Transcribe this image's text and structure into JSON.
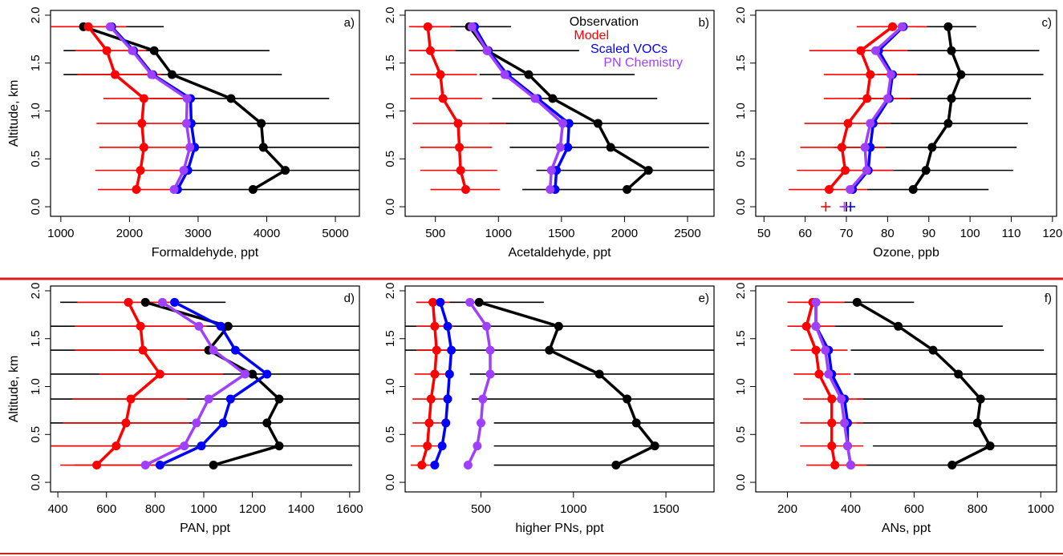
{
  "colors": {
    "observation": "#000000",
    "model": "#ff0000",
    "scaled_vocs": "#0000ff",
    "pn_chemistry": "#a040ff",
    "separator": "#d02020"
  },
  "legend": {
    "placement": "top-right of panel b",
    "entries": [
      "Observation",
      "Model",
      "Scaled VOCs",
      "PN Chemistry"
    ]
  },
  "chart_data": [
    {
      "type": "line",
      "panel_label": "a)",
      "xlabel": "Formaldehyde, ppt",
      "ylabel": "Altitude, km",
      "xlim": [
        850,
        5350
      ],
      "ylim": [
        -0.1,
        2.05
      ],
      "xticks": [
        1000,
        2000,
        3000,
        4000,
        5000
      ],
      "yticks": [
        0.0,
        0.5,
        1.0,
        1.5,
        2.0
      ],
      "altitudes": [
        0.18,
        0.38,
        0.62,
        0.87,
        1.13,
        1.38,
        1.63,
        1.88
      ],
      "series": [
        {
          "name": "Observation",
          "values": [
            3800,
            4270,
            3950,
            3920,
            3480,
            2620,
            2360,
            1330
          ],
          "err_low": [
            2600,
            2880,
            2880,
            2880,
            2300,
            1040,
            1040,
            1330
          ],
          "err_high": [
            5350,
            5350,
            5350,
            5350,
            4910,
            4220,
            4040,
            2500
          ]
        },
        {
          "name": "Model",
          "values": [
            2100,
            2160,
            2210,
            2180,
            2210,
            1790,
            1670,
            1400
          ],
          "err_low": [
            1540,
            1500,
            1560,
            1520,
            1620,
            1240,
            1210,
            850
          ],
          "err_high": [
            2680,
            2830,
            2830,
            2830,
            2830,
            2460,
            2240,
            1950
          ]
        },
        {
          "name": "Scaled VOCs",
          "values": [
            2700,
            2850,
            2950,
            2900,
            2890,
            2340,
            2060,
            1740
          ]
        },
        {
          "name": "PN Chemistry",
          "values": [
            2650,
            2790,
            2880,
            2830,
            2840,
            2320,
            2040,
            1720
          ]
        }
      ]
    },
    {
      "type": "line",
      "panel_label": "b)",
      "xlabel": "Acetaldehyde, ppt",
      "ylabel": "",
      "xlim": [
        260,
        2710
      ],
      "ylim": [
        -0.1,
        2.05
      ],
      "xticks": [
        500,
        1000,
        1500,
        2000,
        2500
      ],
      "yticks": [
        0.0,
        0.5,
        1.0,
        1.5,
        2.0
      ],
      "altitudes": [
        0.18,
        0.38,
        0.62,
        0.87,
        1.13,
        1.38,
        1.63,
        1.88
      ],
      "series": [
        {
          "name": "Observation",
          "values": [
            2020,
            2190,
            1890,
            1790,
            1430,
            1240,
            910,
            770
          ],
          "err_low": [
            1190,
            1300,
            1090,
            930,
            950,
            850,
            290,
            350
          ],
          "err_high": [
            2710,
            2710,
            2670,
            2670,
            2260,
            2080,
            1640,
            1100
          ]
        },
        {
          "name": "Model",
          "values": [
            740,
            700,
            690,
            680,
            560,
            540,
            460,
            440
          ],
          "err_low": [
            460,
            380,
            380,
            320,
            300,
            300,
            290,
            290
          ],
          "err_high": [
            1010,
            990,
            950,
            1060,
            870,
            830,
            660,
            620
          ]
        },
        {
          "name": "Scaled VOCs",
          "values": [
            1450,
            1460,
            1550,
            1560,
            1310,
            1070,
            920,
            810
          ]
        },
        {
          "name": "PN Chemistry",
          "values": [
            1410,
            1420,
            1490,
            1510,
            1290,
            1050,
            910,
            790
          ]
        }
      ]
    },
    {
      "type": "line",
      "panel_label": "c)",
      "xlabel": "Ozone, ppb",
      "ylabel": "",
      "xlim": [
        48,
        121
      ],
      "ylim": [
        -0.1,
        2.05
      ],
      "xticks": [
        50,
        60,
        70,
        80,
        90,
        100,
        110,
        120
      ],
      "yticks": [
        0.0,
        0.5,
        1.0,
        1.5,
        2.0
      ],
      "altitudes": [
        0.18,
        0.38,
        0.62,
        0.87,
        1.13,
        1.38,
        1.63,
        1.88
      ],
      "series": [
        {
          "name": "Observation",
          "values": [
            86.2,
            89.3,
            90.8,
            94.7,
            95.5,
            97.8,
            95.5,
            94.7
          ],
          "err_low": [
            75.0,
            68.0,
            67.0,
            75.0,
            73.0,
            77.5,
            74.0,
            87.0
          ],
          "err_high": [
            104.5,
            110.5,
            111.3,
            114.0,
            114.8,
            117.8,
            116.8,
            101.5
          ]
        },
        {
          "name": "Model",
          "values": [
            65.8,
            69.7,
            68.9,
            70.4,
            75.0,
            75.8,
            73.5,
            81.2
          ],
          "err_low": [
            56.0,
            58.0,
            58.8,
            59.8,
            64.5,
            64.5,
            61.0,
            72.5
          ],
          "err_high": [
            75.0,
            81.3,
            79.5,
            80.8,
            85.5,
            87.2,
            84.8,
            89.5
          ]
        },
        {
          "name": "Scaled VOCs",
          "values": [
            71.5,
            75.3,
            75.8,
            76.5,
            80.4,
            81.2,
            77.8,
            83.8
          ]
        },
        {
          "name": "PN Chemistry",
          "values": [
            70.9,
            74.9,
            74.5,
            75.8,
            80.0,
            80.8,
            77.1,
            83.5
          ]
        }
      ],
      "surface_markers": [
        {
          "name": "Model",
          "value": 65
        },
        {
          "name": "Observation",
          "value": 70
        },
        {
          "name": "Scaled VOCs",
          "value": 71
        },
        {
          "name": "PN Chemistry",
          "value": 69.5
        }
      ]
    },
    {
      "type": "line",
      "panel_label": "d)",
      "xlabel": "PAN, ppt",
      "ylabel": "Altitude, km",
      "xlim": [
        370,
        1640
      ],
      "ylim": [
        -0.1,
        2.05
      ],
      "xticks": [
        400,
        600,
        800,
        1000,
        1200,
        1400,
        1600
      ],
      "yticks": [
        0.0,
        0.5,
        1.0,
        1.5,
        2.0
      ],
      "altitudes": [
        0.18,
        0.38,
        0.62,
        0.87,
        1.13,
        1.38,
        1.63,
        1.88
      ],
      "series": [
        {
          "name": "Observation",
          "values": [
            1040,
            1310,
            1260,
            1310,
            1200,
            1020,
            1100,
            760
          ],
          "err_low": [
            470,
            370,
            370,
            370,
            370,
            370,
            370,
            410
          ],
          "err_high": [
            1610,
            1640,
            1640,
            1640,
            1640,
            1640,
            1640,
            1090
          ]
        },
        {
          "name": "Model",
          "values": [
            560,
            640,
            680,
            700,
            820,
            750,
            740,
            690
          ],
          "err_low": [
            410,
            370,
            420,
            460,
            570,
            470,
            470,
            480
          ],
          "err_high": [
            800,
            930,
            940,
            930,
            1080,
            1040,
            1010,
            890
          ]
        },
        {
          "name": "Scaled VOCs",
          "values": [
            820,
            990,
            1080,
            1110,
            1260,
            1130,
            1070,
            880
          ]
        },
        {
          "name": "PN Chemistry",
          "values": [
            760,
            920,
            970,
            1020,
            1170,
            1040,
            980,
            830
          ]
        }
      ]
    },
    {
      "type": "line",
      "panel_label": "e)",
      "xlabel": "higher PNs, ppt",
      "ylabel": "",
      "xlim": [
        90,
        1760
      ],
      "ylim": [
        -0.1,
        2.05
      ],
      "xticks": [
        500,
        1000,
        1500
      ],
      "yticks": [
        0.0,
        0.5,
        1.0,
        1.5,
        2.0
      ],
      "altitudes": [
        0.18,
        0.38,
        0.62,
        0.87,
        1.13,
        1.38,
        1.63,
        1.88
      ],
      "series": [
        {
          "name": "Observation",
          "values": [
            1230,
            1440,
            1340,
            1290,
            1140,
            870,
            920,
            490
          ],
          "err_low": [
            570,
            570,
            570,
            450,
            440,
            90,
            90,
            150
          ],
          "err_high": [
            1760,
            1760,
            1760,
            1760,
            1760,
            1760,
            1760,
            840
          ]
        },
        {
          "name": "Model",
          "values": [
            180,
            210,
            220,
            230,
            250,
            260,
            250,
            240
          ],
          "err_low": [
            120,
            120,
            130,
            130,
            140,
            150,
            150,
            150
          ],
          "err_high": [
            250,
            290,
            310,
            320,
            330,
            350,
            350,
            330
          ]
        },
        {
          "name": "Scaled VOCs",
          "values": [
            250,
            290,
            310,
            320,
            330,
            340,
            320,
            280
          ]
        },
        {
          "name": "PN Chemistry",
          "values": [
            430,
            480,
            500,
            510,
            550,
            550,
            530,
            440
          ]
        }
      ]
    },
    {
      "type": "line",
      "panel_label": "f)",
      "xlabel": "ANs, ppt",
      "ylabel": "",
      "xlim": [
        100,
        1050
      ],
      "ylim": [
        -0.1,
        2.05
      ],
      "xticks": [
        200,
        400,
        600,
        800,
        1000
      ],
      "yticks": [
        0.0,
        0.5,
        1.0,
        1.5,
        2.0
      ],
      "altitudes": [
        0.18,
        0.38,
        0.62,
        0.87,
        1.13,
        1.38,
        1.63,
        1.88
      ],
      "series": [
        {
          "name": "Observation",
          "values": [
            720,
            840,
            800,
            810,
            740,
            660,
            550,
            420
          ],
          "err_low": [
            400,
            470,
            420,
            420,
            410,
            400,
            280,
            250
          ],
          "err_high": [
            1050,
            1050,
            1050,
            1050,
            1050,
            1010,
            880,
            600
          ]
        },
        {
          "name": "Model",
          "values": [
            350,
            340,
            340,
            340,
            300,
            290,
            260,
            280
          ],
          "err_low": [
            260,
            240,
            240,
            250,
            220,
            210,
            200,
            200
          ],
          "err_high": [
            450,
            440,
            440,
            440,
            400,
            390,
            350,
            380
          ]
        },
        {
          "name": "Scaled VOCs",
          "values": [
            400,
            390,
            390,
            380,
            340,
            330,
            290,
            290
          ]
        },
        {
          "name": "PN Chemistry",
          "values": [
            400,
            390,
            380,
            370,
            330,
            320,
            290,
            290
          ]
        }
      ]
    }
  ]
}
